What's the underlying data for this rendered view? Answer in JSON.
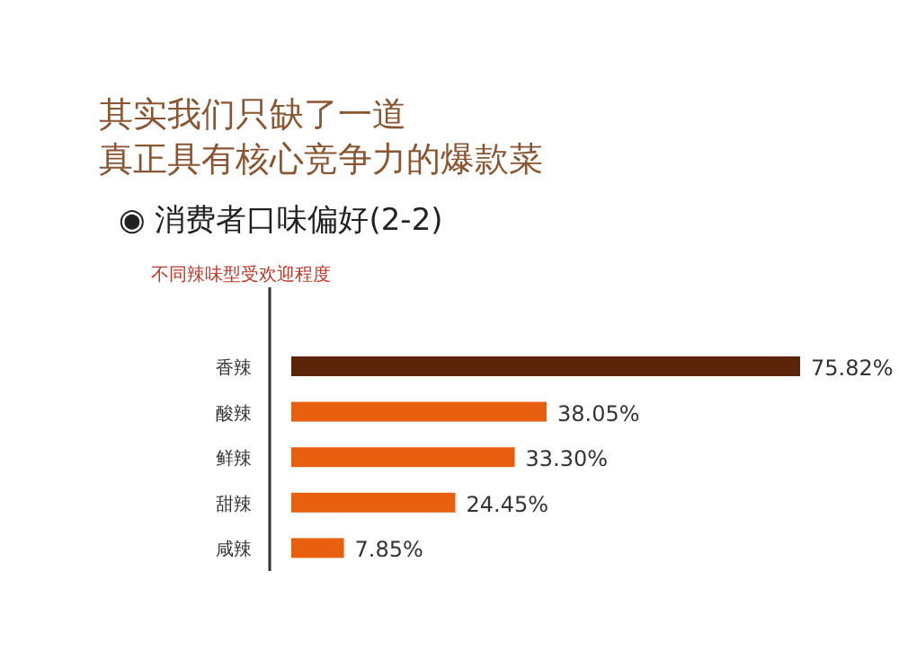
{
  "chart_data": {
    "type": "bar",
    "orientation": "horizontal",
    "title": "其实我们只缺了一道真正具有核心竞争力的爆款菜",
    "subtitle": "◉ 消费者口味偏好(2-2)",
    "annotations": [
      "不同辣味型受欢迎程度"
    ],
    "categories": [
      "香辣",
      "酸辣",
      "鲜辣",
      "甜辣",
      "咸辣"
    ],
    "values": [
      75.82,
      38.05,
      33.3,
      24.45,
      7.85
    ],
    "value_labels": [
      "75.82%",
      "38.05%",
      "33.30%",
      "24.45%",
      "7.85%"
    ],
    "colors": [
      "#5c2408",
      "#e8600f",
      "#e8600f",
      "#e8600f",
      "#e8600f"
    ]
  }
}
